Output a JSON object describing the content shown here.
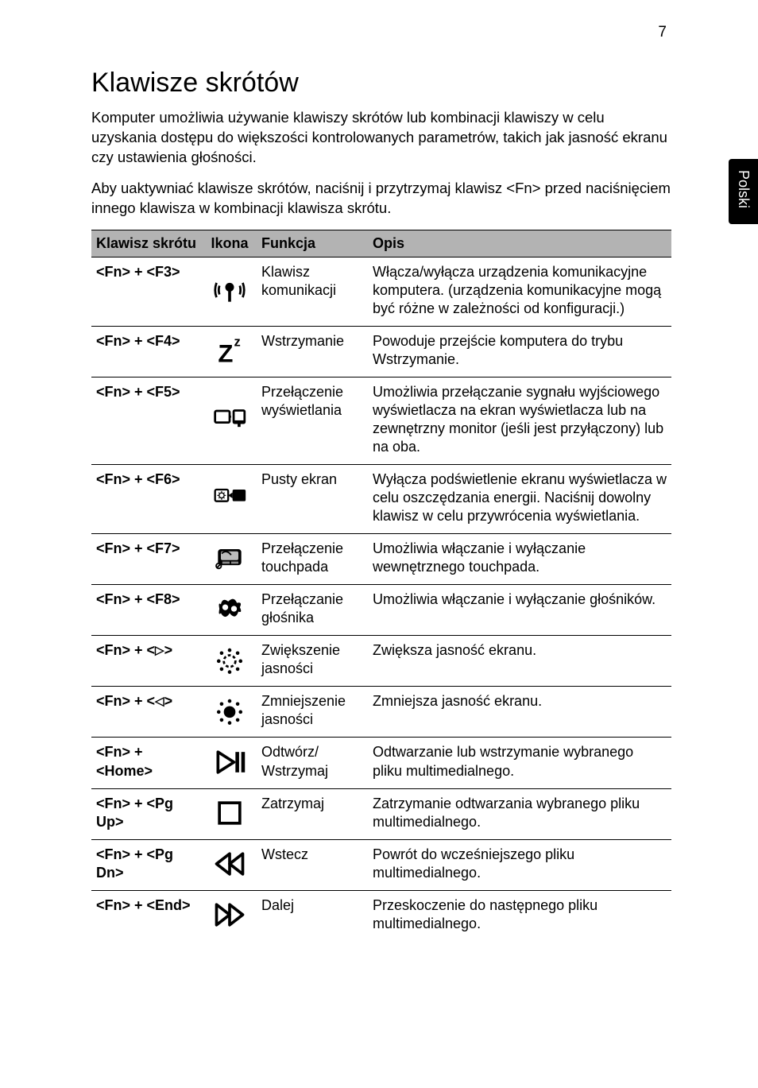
{
  "page_number": "7",
  "side_tab": "Polski",
  "heading": "Klawisze skrótów",
  "intro_paragraphs": [
    "Komputer umożliwia używanie klawiszy skrótów lub kombinacji klawiszy w celu uzyskania dostępu do większości kontrolowanych parametrów, takich jak jasność ekranu czy ustawienia głośności.",
    "Aby uaktywniać klawisze skrótów, naciśnij i przytrzymaj klawisz <Fn> przed naciśnięciem innego klawisza w kombinacji klawisza skrótu."
  ],
  "columns": {
    "hotkey": "Klawisz skrótu",
    "icon": "Ikona",
    "func": "Funkcja",
    "desc": "Opis"
  },
  "rows": [
    {
      "hotkey": "<Fn> + <F3>",
      "icon": "wireless",
      "func": "Klawisz komunikacji",
      "desc": "Włącza/wyłącza urządzenia komunikacyjne komputera. (urządzenia komunikacyjne mogą być różne w zależności od konfiguracji.)"
    },
    {
      "hotkey": "<Fn> + <F4>",
      "icon": "sleep",
      "func": "Wstrzymanie",
      "desc": "Powoduje przejście komputera do trybu Wstrzymanie."
    },
    {
      "hotkey": "<Fn> + <F5>",
      "icon": "display-toggle",
      "func": "Przełączenie wyświetlania",
      "desc": "Umożliwia przełączanie sygnału wyjściowego wyświetlacza na ekran wyświetlacza lub na zewnętrzny monitor (jeśli jest przyłączony) lub na oba."
    },
    {
      "hotkey": "<Fn> + <F6>",
      "icon": "blank-screen",
      "func": "Pusty ekran",
      "desc": "Wyłącza podświetlenie ekranu wyświetlacza w celu oszczędzania energii. Naciśnij dowolny klawisz w celu przywrócenia wyświetlania."
    },
    {
      "hotkey": "<Fn> + <F7>",
      "icon": "touchpad",
      "func": "Przełączenie touchpada",
      "desc": "Umożliwia włączanie i wyłączanie wewnętrznego touchpada."
    },
    {
      "hotkey": "<Fn> + <F8>",
      "icon": "speaker",
      "func": "Przełączanie głośnika",
      "desc": "Umożliwia włączanie i wyłączanie głośników."
    },
    {
      "hotkey": "<Fn> + <▷>",
      "hotkey_html": "&lt;Fn&gt; + &lt;<span class='tri'>▷</span>&gt;",
      "icon": "bright-up",
      "func": "Zwiększenie jasności",
      "desc": "Zwiększa jasność ekranu."
    },
    {
      "hotkey": "<Fn> + <◁>",
      "hotkey_html": "&lt;Fn&gt; + &lt;<span class='tri'>◁</span>&gt;",
      "icon": "bright-down",
      "func": "Zmniejszenie jasności",
      "desc": "Zmniejsza jasność ekranu."
    },
    {
      "hotkey": "<Fn> + <Home>",
      "icon": "play-pause",
      "func": "Odtwórz/\nWstrzymaj",
      "desc": "Odtwarzanie lub wstrzymanie wybranego pliku multimedialnego."
    },
    {
      "hotkey": "<Fn> + <Pg Up>",
      "icon": "stop",
      "func": "Zatrzymaj",
      "desc": "Zatrzymanie odtwarzania wybranego pliku multimedialnego."
    },
    {
      "hotkey": "<Fn> + <Pg Dn>",
      "icon": "prev",
      "func": "Wstecz",
      "desc": "Powrót do wcześniejszego pliku multimedialnego."
    },
    {
      "hotkey": "<Fn> + <End>",
      "icon": "next",
      "func": "Dalej",
      "desc": "Przeskoczenie do następnego pliku multimedialnego."
    }
  ],
  "colors": {
    "header_bg": "#b3b3b3",
    "border": "#000000",
    "text": "#000000",
    "side_tab_bg": "#000000",
    "side_tab_text": "#ffffff"
  }
}
